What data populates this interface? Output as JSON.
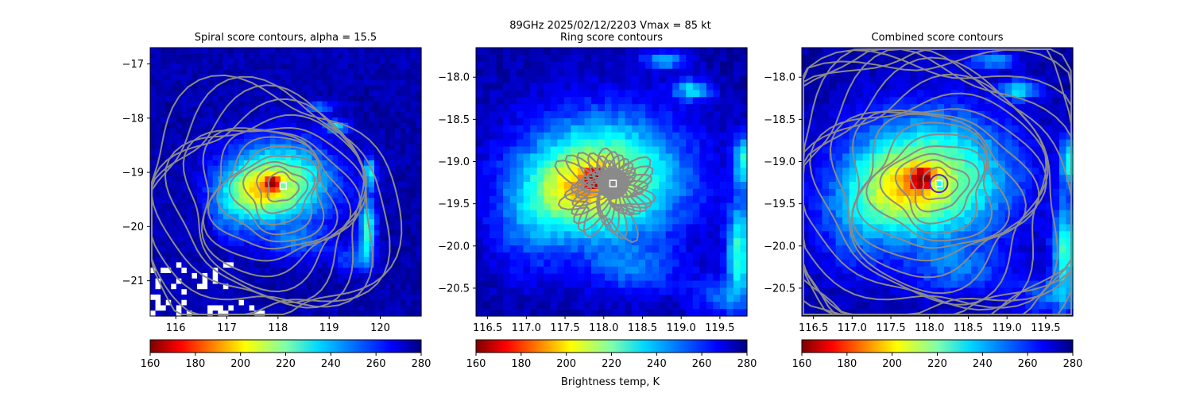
{
  "figure": {
    "suptitle_line": "89GHz  2025/02/12/2203    Vmax = 85 kt",
    "colorbar_label": "Brightness temp, K"
  },
  "colors": {
    "contour": "#8a8a8a",
    "center_marker": "#ffffff",
    "ring_marker": "#5a1fd1",
    "missing": "#ffffff"
  },
  "chart_data": [
    {
      "type": "heatmap",
      "title": "Spiral score contours, alpha = 15.5",
      "xlim": [
        115.5,
        120.8
      ],
      "ylim": [
        -21.65,
        -16.7
      ],
      "x_ticks": [
        116,
        117,
        118,
        119,
        120
      ],
      "x_tick_labels": [
        "116",
        "117",
        "118",
        "119",
        "120"
      ],
      "y_ticks": [
        -17,
        -18,
        -19,
        -20,
        -21
      ],
      "y_tick_labels": [
        "−17",
        "−18",
        "−19",
        "−20",
        "−21"
      ],
      "center": [
        118.1,
        -19.25
      ],
      "contour_levels": 14,
      "colorbar": {
        "min": 160,
        "max": 280,
        "ticks": [
          "160",
          "180",
          "200",
          "220",
          "240",
          "260",
          "280"
        ],
        "colormap": "jet_r"
      }
    },
    {
      "type": "heatmap",
      "title": "Ring score contours",
      "xlim": [
        116.35,
        119.85
      ],
      "ylim": [
        -20.83,
        -17.65
      ],
      "x_ticks": [
        116.5,
        117.0,
        117.5,
        118.0,
        118.5,
        119.0,
        119.5
      ],
      "x_tick_labels": [
        "116.5",
        "117.0",
        "117.5",
        "118.0",
        "118.5",
        "119.0",
        "119.5"
      ],
      "y_ticks": [
        -18.0,
        -18.5,
        -19.0,
        -19.5,
        -20.0,
        -20.5
      ],
      "y_tick_labels": [
        "−18.0",
        "−18.5",
        "−19.0",
        "−19.5",
        "−20.0",
        "−20.5"
      ],
      "center": [
        118.12,
        -19.26
      ],
      "contour_levels": 10,
      "colorbar": {
        "min": 160,
        "max": 280,
        "ticks": [
          "160",
          "180",
          "200",
          "220",
          "240",
          "260",
          "280"
        ],
        "colormap": "jet_r"
      }
    },
    {
      "type": "heatmap",
      "title": "Combined score contours",
      "xlim": [
        116.35,
        119.85
      ],
      "ylim": [
        -20.83,
        -17.65
      ],
      "x_ticks": [
        116.5,
        117.0,
        117.5,
        118.0,
        118.5,
        119.0,
        119.5
      ],
      "x_tick_labels": [
        "116.5",
        "117.0",
        "117.5",
        "118.0",
        "118.5",
        "119.0",
        "119.5"
      ],
      "y_ticks": [
        -18.0,
        -18.5,
        -19.0,
        -19.5,
        -20.0,
        -20.5
      ],
      "y_tick_labels": [
        "−18.0",
        "−18.5",
        "−19.0",
        "−19.5",
        "−20.0",
        "−20.5"
      ],
      "center": [
        118.12,
        -19.26
      ],
      "contour_levels": 18,
      "colorbar": {
        "min": 160,
        "max": 280,
        "ticks": [
          "160",
          "180",
          "200",
          "220",
          "240",
          "260",
          "280"
        ],
        "colormap": "jet_r"
      }
    }
  ]
}
